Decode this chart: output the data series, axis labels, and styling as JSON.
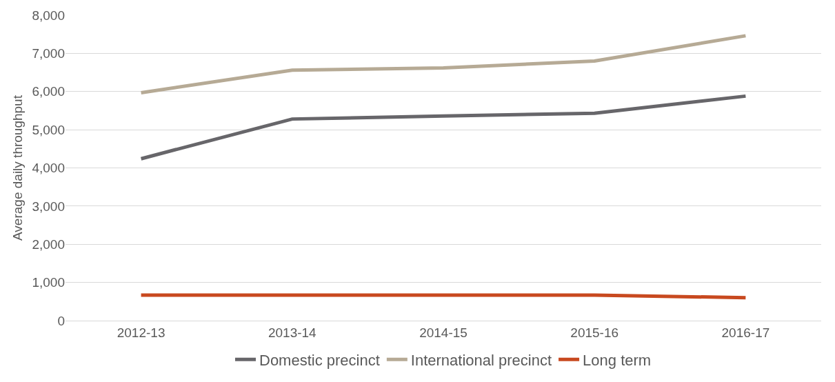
{
  "chart_data": {
    "type": "line",
    "ylabel": "Average daily throughput",
    "categories": [
      "2012-13",
      "2013-14",
      "2014-15",
      "2015-16",
      "2016-17"
    ],
    "series": [
      {
        "name": "Domestic precinct",
        "color": "#67666a",
        "values": [
          4240,
          5280,
          5360,
          5430,
          5880
        ]
      },
      {
        "name": "International precinct",
        "color": "#b6aa95",
        "values": [
          5970,
          6560,
          6620,
          6800,
          7460
        ]
      },
      {
        "name": "Long term",
        "color": "#c8491f",
        "values": [
          670,
          670,
          670,
          670,
          600
        ]
      }
    ],
    "ylim": [
      0,
      8000
    ],
    "yticks": [
      {
        "value": 0,
        "label": "0"
      },
      {
        "value": 1000,
        "label": "1,000"
      },
      {
        "value": 2000,
        "label": "2,000"
      },
      {
        "value": 3000,
        "label": "3,000"
      },
      {
        "value": 4000,
        "label": "4,000"
      },
      {
        "value": 5000,
        "label": "5,000"
      },
      {
        "value": 6000,
        "label": "6,000"
      },
      {
        "value": 7000,
        "label": "7,000"
      },
      {
        "value": 8000,
        "label": "8,000"
      }
    ],
    "grid": "y",
    "legend": "bottom",
    "marker": "none",
    "line_style": "solid"
  }
}
